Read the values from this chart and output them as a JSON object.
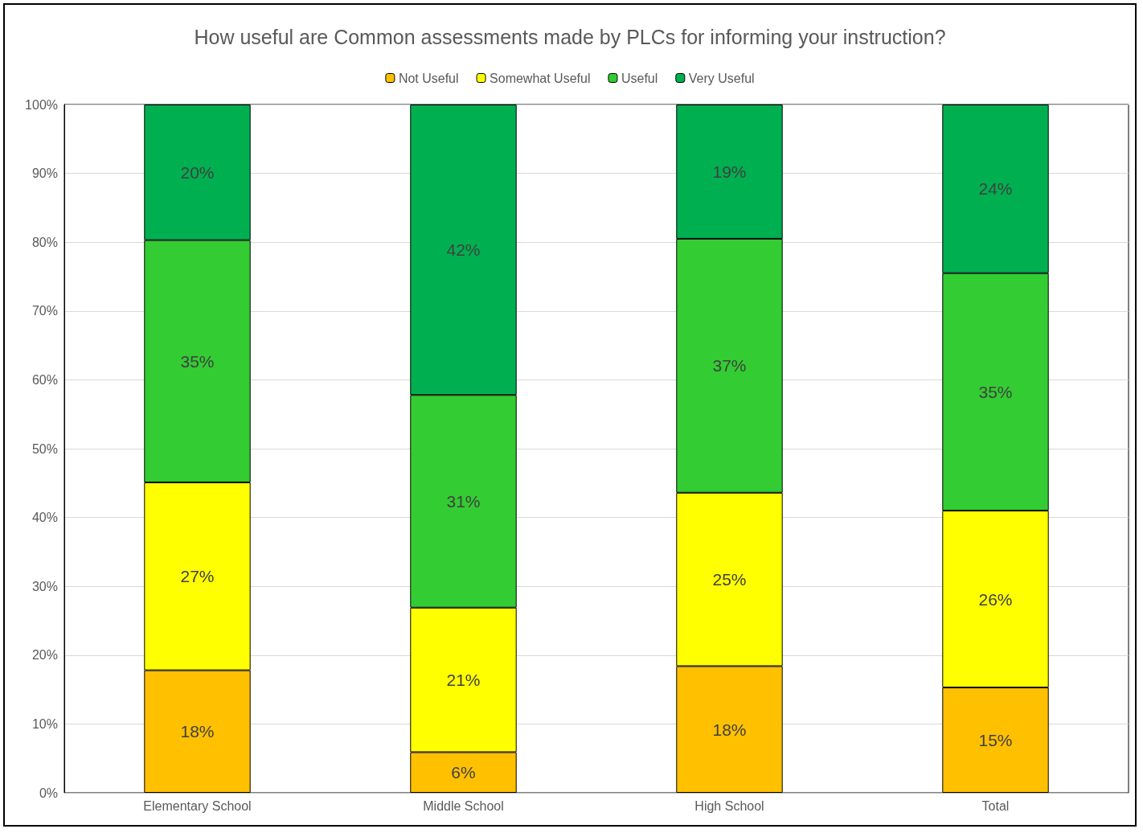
{
  "chart_data": {
    "type": "bar",
    "title": "How useful are Common assessments made by PLCs for informing your instruction?",
    "categories": [
      "Elementary School",
      "Middle School",
      "High School",
      "Total"
    ],
    "stacked": true,
    "series": [
      {
        "name": "Not Useful",
        "color": "#ffc000",
        "values": [
          17.8,
          5.9,
          18.4,
          15.3
        ],
        "value_labels": [
          "18%",
          "6%",
          "18%",
          "15%"
        ]
      },
      {
        "name": "Somewhat Useful",
        "color": "#ffff00",
        "values": [
          27.3,
          21.0,
          25.2,
          25.7
        ],
        "value_labels": [
          "27%",
          "21%",
          "25%",
          "26%"
        ]
      },
      {
        "name": "Useful",
        "color": "#33cc33",
        "values": [
          35.2,
          30.9,
          36.9,
          34.5
        ],
        "value_labels": [
          "35%",
          "31%",
          "37%",
          "35%"
        ]
      },
      {
        "name": "Very Useful",
        "color": "#00b050",
        "values": [
          19.7,
          42.2,
          19.5,
          24.5
        ],
        "value_labels": [
          "20%",
          "42%",
          "19%",
          "24%"
        ]
      }
    ],
    "ylim": [
      0,
      100
    ],
    "yticks": [
      {
        "value": 0,
        "label": "0%"
      },
      {
        "value": 10,
        "label": "10%"
      },
      {
        "value": 20,
        "label": "20%"
      },
      {
        "value": 30,
        "label": "30%"
      },
      {
        "value": 40,
        "label": "40%"
      },
      {
        "value": 50,
        "label": "50%"
      },
      {
        "value": 60,
        "label": "60%"
      },
      {
        "value": 70,
        "label": "70%"
      },
      {
        "value": 80,
        "label": "80%"
      },
      {
        "value": 90,
        "label": "90%"
      },
      {
        "value": 100,
        "label": "100%"
      }
    ],
    "grid": "y",
    "legend": "top"
  }
}
